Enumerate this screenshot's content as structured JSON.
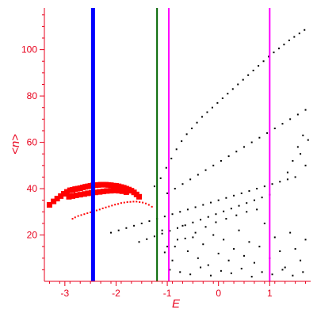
{
  "chart_data": {
    "type": "scatter",
    "title": "",
    "xlabel": "E",
    "ylabel": "<n>",
    "xlim": [
      -3.4,
      1.8
    ],
    "ylim": [
      0,
      118
    ],
    "xticks": [
      -3,
      -2,
      -1,
      0,
      1
    ],
    "yticks": [
      20,
      40,
      60,
      80,
      100
    ],
    "xtick_labels": [
      "-3",
      "-2",
      "-1",
      "0",
      "1"
    ],
    "ytick_labels": [
      "20",
      "40",
      "60",
      "80",
      "100"
    ],
    "grid": false,
    "legend": null,
    "axis_color": "#e8001c",
    "vertical_lines": [
      {
        "x": -2.45,
        "color": "#0000ff",
        "style": "thick"
      },
      {
        "x": -1.2,
        "color": "#006400",
        "style": "thin"
      },
      {
        "x": -0.97,
        "color": "#ff00ff",
        "style": "thin"
      },
      {
        "x": 1.0,
        "color": "#ff00ff",
        "style": "thin"
      }
    ],
    "series": [
      {
        "color": "#ff0000",
        "style": "dense-band",
        "points": [
          [
            -3.3,
            33.0
          ],
          [
            -3.22,
            34.5
          ],
          [
            -3.15,
            35.7
          ],
          [
            -3.08,
            36.8
          ],
          [
            -3.02,
            37.8
          ],
          [
            -2.96,
            38.6
          ],
          [
            -2.9,
            39.3
          ],
          [
            -2.85,
            39.5
          ],
          [
            -2.8,
            39.8
          ],
          [
            -2.75,
            40.0
          ],
          [
            -2.7,
            40.2
          ],
          [
            -2.65,
            40.5
          ],
          [
            -2.6,
            40.8
          ],
          [
            -2.55,
            41.0
          ],
          [
            -2.5,
            41.2
          ],
          [
            -2.45,
            41.4
          ],
          [
            -2.4,
            41.5
          ],
          [
            -2.35,
            41.6
          ],
          [
            -2.3,
            41.7
          ],
          [
            -2.25,
            41.7
          ],
          [
            -2.2,
            41.7
          ],
          [
            -2.15,
            41.6
          ],
          [
            -2.1,
            41.5
          ],
          [
            -2.05,
            41.3
          ],
          [
            -2.0,
            41.2
          ],
          [
            -1.95,
            41.0
          ],
          [
            -1.9,
            40.7
          ],
          [
            -1.85,
            40.4
          ],
          [
            -1.8,
            40.0
          ],
          [
            -1.75,
            39.6
          ],
          [
            -1.7,
            39.1
          ],
          [
            -1.65,
            38.4
          ],
          [
            -1.6,
            37.5
          ],
          [
            -1.55,
            36.5
          ],
          [
            -2.92,
            36.5
          ],
          [
            -2.85,
            36.8
          ],
          [
            -2.78,
            37.1
          ],
          [
            -2.7,
            37.4
          ],
          [
            -2.62,
            37.7
          ],
          [
            -2.55,
            38.0
          ],
          [
            -2.48,
            38.2
          ],
          [
            -2.4,
            38.4
          ],
          [
            -2.32,
            38.6
          ],
          [
            -2.25,
            38.8
          ],
          [
            -2.18,
            39.0
          ],
          [
            -2.1,
            39.1
          ],
          [
            -2.02,
            39.2
          ],
          [
            -1.95,
            39.1
          ],
          [
            -1.88,
            38.9
          ],
          [
            -1.8,
            38.5
          ]
        ]
      },
      {
        "color": "#ff0000",
        "style": "small",
        "points": [
          [
            -2.85,
            27.0
          ],
          [
            -2.8,
            27.6
          ],
          [
            -2.74,
            28.2
          ],
          [
            -2.68,
            28.6
          ],
          [
            -2.62,
            29.0
          ],
          [
            -2.56,
            29.4
          ],
          [
            -2.5,
            29.8
          ],
          [
            -2.44,
            30.2
          ],
          [
            -2.38,
            30.6
          ],
          [
            -2.32,
            31.0
          ],
          [
            -2.26,
            31.5
          ],
          [
            -2.2,
            31.9
          ],
          [
            -2.14,
            32.3
          ],
          [
            -2.08,
            32.7
          ],
          [
            -2.02,
            33.1
          ],
          [
            -1.96,
            33.4
          ],
          [
            -1.9,
            33.8
          ],
          [
            -1.84,
            34.0
          ],
          [
            -1.78,
            34.2
          ],
          [
            -1.72,
            34.3
          ],
          [
            -1.66,
            34.4
          ],
          [
            -1.6,
            34.4
          ],
          [
            -1.54,
            34.2
          ],
          [
            -1.48,
            34.0
          ],
          [
            -1.42,
            33.6
          ],
          [
            -1.36,
            33.0
          ],
          [
            -1.3,
            32.2
          ]
        ]
      },
      {
        "color": "#000000",
        "style": "small",
        "points": [
          [
            -1.25,
            41.0
          ],
          [
            -1.13,
            44.5
          ],
          [
            -1.02,
            49.0
          ],
          [
            -0.92,
            53.0
          ],
          [
            -0.82,
            57.0
          ],
          [
            -0.72,
            60.5
          ],
          [
            -0.62,
            63.5
          ],
          [
            -0.52,
            66.0
          ],
          [
            -0.42,
            68.5
          ],
          [
            -0.32,
            71.0
          ],
          [
            -0.22,
            73.0
          ],
          [
            -0.12,
            75.0
          ],
          [
            -0.02,
            77.0
          ],
          [
            0.08,
            79.0
          ],
          [
            0.18,
            81.0
          ],
          [
            0.28,
            83.0
          ],
          [
            0.38,
            85.0
          ],
          [
            0.48,
            87.0
          ],
          [
            0.58,
            89.0
          ],
          [
            0.68,
            91.0
          ],
          [
            0.78,
            93.0
          ],
          [
            0.88,
            95.0
          ],
          [
            0.98,
            97.0
          ],
          [
            1.08,
            98.8
          ],
          [
            1.18,
            100.5
          ],
          [
            1.28,
            102.2
          ],
          [
            1.38,
            104.0
          ],
          [
            1.48,
            105.5
          ],
          [
            1.58,
            107.0
          ],
          [
            1.68,
            108.5
          ],
          [
            -1.0,
            38.0
          ],
          [
            -0.85,
            40.0
          ],
          [
            -0.7,
            42.0
          ],
          [
            -0.55,
            44.0
          ],
          [
            -0.4,
            46.0
          ],
          [
            -0.25,
            48.0
          ],
          [
            -0.1,
            50.0
          ],
          [
            0.05,
            52.0
          ],
          [
            0.2,
            54.0
          ],
          [
            0.35,
            56.0
          ],
          [
            0.5,
            58.0
          ],
          [
            0.65,
            60.0
          ],
          [
            0.8,
            62.0
          ],
          [
            0.95,
            64.0
          ],
          [
            1.1,
            66.0
          ],
          [
            1.25,
            68.0
          ],
          [
            1.4,
            70.0
          ],
          [
            1.55,
            72.0
          ],
          [
            1.7,
            74.0
          ],
          [
            -2.1,
            21.0
          ],
          [
            -1.95,
            22.0
          ],
          [
            -1.8,
            23.0
          ],
          [
            -1.65,
            24.0
          ],
          [
            -1.5,
            25.0
          ],
          [
            -1.35,
            26.0
          ],
          [
            -1.2,
            27.0
          ],
          [
            -1.05,
            28.0
          ],
          [
            -0.9,
            29.0
          ],
          [
            -0.75,
            30.0
          ],
          [
            -0.6,
            31.0
          ],
          [
            -0.45,
            32.0
          ],
          [
            -0.3,
            33.0
          ],
          [
            -0.15,
            34.0
          ],
          [
            0.0,
            35.0
          ],
          [
            0.15,
            36.0
          ],
          [
            0.3,
            37.0
          ],
          [
            0.45,
            38.0
          ],
          [
            0.6,
            39.0
          ],
          [
            0.75,
            40.0
          ],
          [
            0.9,
            41.0
          ],
          [
            1.05,
            42.0
          ],
          [
            1.2,
            43.0
          ],
          [
            1.35,
            44.0
          ],
          [
            1.5,
            45.0
          ],
          [
            -1.55,
            17.0
          ],
          [
            -1.4,
            18.2
          ],
          [
            -1.25,
            19.4
          ],
          [
            -1.1,
            20.6
          ],
          [
            -0.95,
            21.8
          ],
          [
            -0.8,
            23.0
          ],
          [
            -0.65,
            24.2
          ],
          [
            -0.5,
            25.4
          ],
          [
            -0.35,
            26.6
          ],
          [
            -0.2,
            27.8
          ],
          [
            -0.05,
            29.0
          ],
          [
            0.1,
            30.2
          ],
          [
            0.25,
            31.4
          ],
          [
            0.4,
            32.6
          ],
          [
            0.55,
            33.8
          ],
          [
            0.7,
            35.0
          ],
          [
            0.85,
            36.2
          ],
          [
            1.0,
            37.4
          ],
          [
            -1.05,
            12.5
          ],
          [
            -0.85,
            15.0
          ],
          [
            -0.65,
            18.5
          ],
          [
            -0.45,
            21.0
          ],
          [
            -0.25,
            23.5
          ],
          [
            -0.05,
            25.5
          ],
          [
            0.15,
            27.0
          ],
          [
            0.35,
            28.5
          ],
          [
            0.55,
            30.0
          ],
          [
            0.75,
            31.0
          ],
          [
            -1.1,
            22.0
          ],
          [
            -1.0,
            15.0
          ],
          [
            -0.9,
            9.0
          ],
          [
            -0.8,
            18.0
          ],
          [
            -0.7,
            24.0
          ],
          [
            -0.6,
            13.0
          ],
          [
            -0.5,
            19.0
          ],
          [
            -0.4,
            10.0
          ],
          [
            -0.3,
            16.0
          ],
          [
            -0.2,
            7.0
          ],
          [
            -0.1,
            20.0
          ],
          [
            0.0,
            12.0
          ],
          [
            0.1,
            18.0
          ],
          [
            0.2,
            9.0
          ],
          [
            0.3,
            14.0
          ],
          [
            0.4,
            22.0
          ],
          [
            0.5,
            11.0
          ],
          [
            0.6,
            17.0
          ],
          [
            0.7,
            8.0
          ],
          [
            0.8,
            15.0
          ],
          [
            0.9,
            25.0
          ],
          [
            1.0,
            10.0
          ],
          [
            1.1,
            19.0
          ],
          [
            1.2,
            13.0
          ],
          [
            1.3,
            6.0
          ],
          [
            1.4,
            21.0
          ],
          [
            1.5,
            14.0
          ],
          [
            1.6,
            9.0
          ],
          [
            1.7,
            18.0
          ],
          [
            -0.95,
            5.0
          ],
          [
            -0.75,
            4.0
          ],
          [
            -0.55,
            3.0
          ],
          [
            -0.35,
            6.0
          ],
          [
            -0.15,
            2.5
          ],
          [
            0.05,
            4.5
          ],
          [
            0.25,
            3.5
          ],
          [
            0.45,
            5.5
          ],
          [
            0.65,
            2.0
          ],
          [
            0.85,
            4.0
          ],
          [
            1.05,
            3.0
          ],
          [
            1.25,
            5.0
          ],
          [
            1.45,
            2.5
          ],
          [
            1.65,
            4.0
          ],
          [
            1.35,
            47.0
          ],
          [
            1.45,
            52.0
          ],
          [
            1.55,
            58.0
          ],
          [
            1.65,
            63.0
          ],
          [
            1.75,
            61.0
          ],
          [
            1.6,
            55.0
          ],
          [
            1.7,
            50.0
          ]
        ]
      }
    ]
  }
}
